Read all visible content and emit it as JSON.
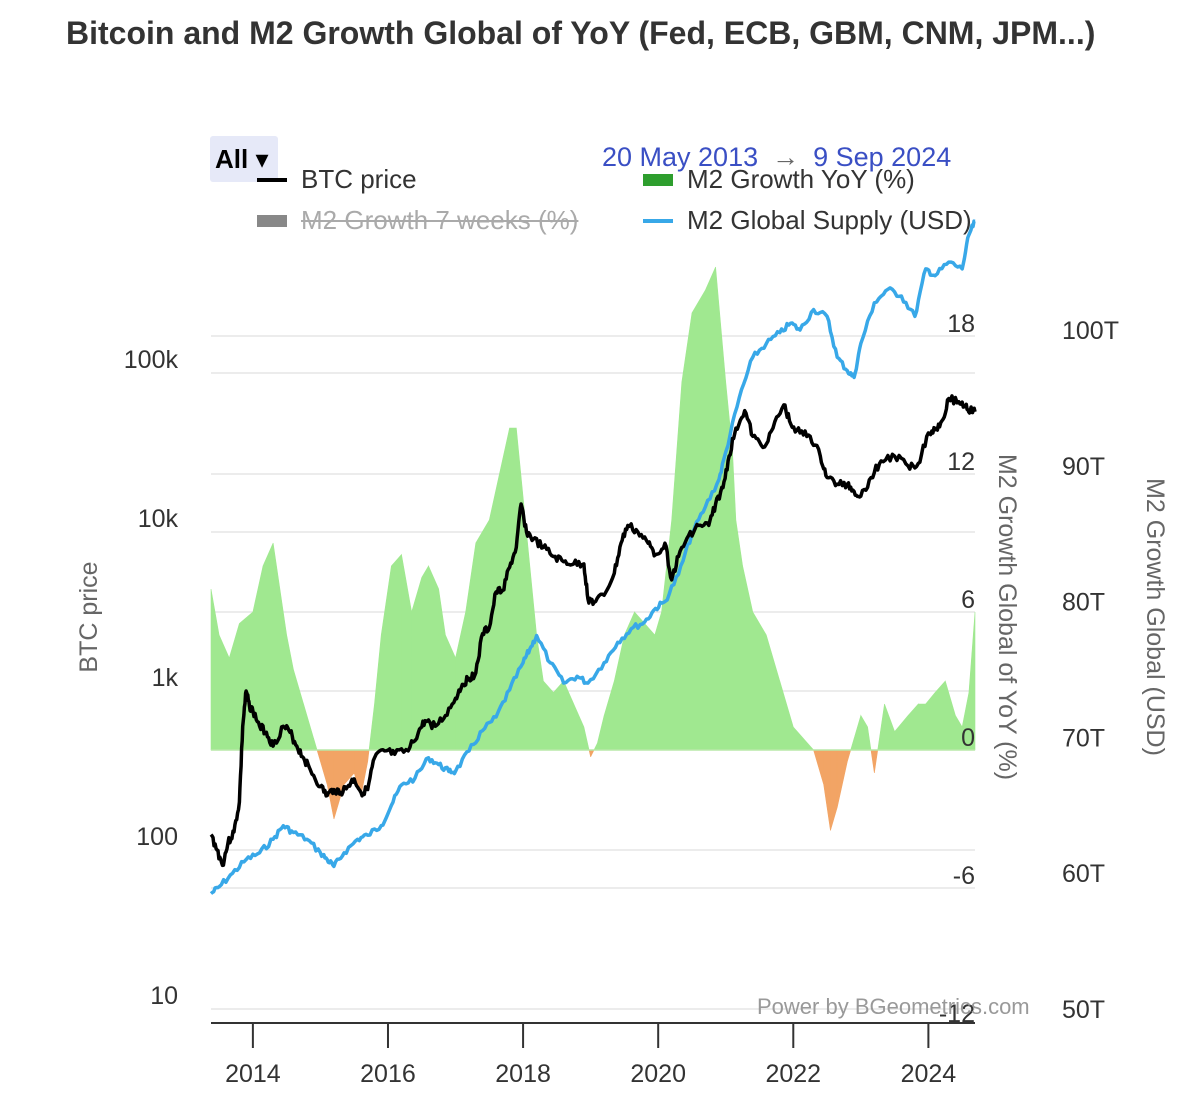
{
  "title": "Bitcoin and M2 Growth Global of YoY (Fed, ECB, GBM, CNM, JPM...)",
  "range_selector": {
    "label": "All ▾"
  },
  "date_range": {
    "from": "20 May 2013",
    "arrow": "→",
    "to": "9 Sep 2024"
  },
  "legend": [
    {
      "label": "BTC price",
      "color": "#000000",
      "symbol": "line",
      "hidden": false
    },
    {
      "label": "M2 Growth YoY (%)",
      "color": "#2e9e2e",
      "symbol": "area",
      "hidden": false
    },
    {
      "label": "M2 Growth 7 weeks (%)",
      "color": "#888888",
      "symbol": "area",
      "hidden": true
    },
    {
      "label": "M2 Global Supply (USD)",
      "color": "#38a8e8",
      "symbol": "line",
      "hidden": false
    }
  ],
  "credit": "Power by BGeometrics.com",
  "chart_data": {
    "type": "line",
    "x_range": [
      2013.38,
      2024.69
    ],
    "x_ticks": [
      "2014",
      "2016",
      "2018",
      "2020",
      "2022",
      "2024"
    ],
    "axes": {
      "btc": {
        "title": "BTC price",
        "scale": "log",
        "range": [
          10,
          400000
        ],
        "ticks": [
          "10",
          "100",
          "1k",
          "10k",
          "100k"
        ]
      },
      "growth": {
        "title": "M2 Growth Global of YoY (%)",
        "range": [
          -12,
          22
        ],
        "ticks": [
          "-12",
          "-6",
          "0",
          "6",
          "12",
          "18"
        ]
      },
      "supply": {
        "title": "M2 Growth Global (USD)",
        "unit": "T",
        "range": [
          50,
          108
        ],
        "ticks": [
          "50T",
          "60T",
          "70T",
          "80T",
          "90T",
          "100T"
        ]
      }
    },
    "series": [
      {
        "name": "BTC price",
        "axis": "btc",
        "color": "#000000",
        "x": [
          2013.38,
          2013.47,
          2013.55,
          2013.63,
          2013.72,
          2013.8,
          2013.85,
          2013.9,
          2013.95,
          2014.0,
          2014.1,
          2014.2,
          2014.3,
          2014.45,
          2014.55,
          2014.65,
          2014.75,
          2014.85,
          2015.0,
          2015.1,
          2015.2,
          2015.3,
          2015.4,
          2015.5,
          2015.6,
          2015.7,
          2015.8,
          2015.95,
          2016.1,
          2016.3,
          2016.45,
          2016.55,
          2016.7,
          2016.85,
          2017.0,
          2017.1,
          2017.2,
          2017.3,
          2017.4,
          2017.5,
          2017.6,
          2017.7,
          2017.8,
          2017.9,
          2017.97,
          2018.05,
          2018.15,
          2018.3,
          2018.45,
          2018.6,
          2018.75,
          2018.9,
          2018.96,
          2019.05,
          2019.2,
          2019.35,
          2019.45,
          2019.55,
          2019.7,
          2019.85,
          2019.96,
          2020.1,
          2020.2,
          2020.3,
          2020.45,
          2020.6,
          2020.75,
          2020.85,
          2020.96,
          2021.05,
          2021.15,
          2021.28,
          2021.4,
          2021.55,
          2021.7,
          2021.86,
          2021.96,
          2022.1,
          2022.25,
          2022.4,
          2022.5,
          2022.65,
          2022.8,
          2022.9,
          2023.0,
          2023.15,
          2023.3,
          2023.5,
          2023.7,
          2023.85,
          2024.0,
          2024.1,
          2024.2,
          2024.3,
          2024.45,
          2024.55,
          2024.62,
          2024.69
        ],
        "y": [
          125,
          100,
          80,
          110,
          130,
          200,
          600,
          1000,
          800,
          750,
          600,
          550,
          450,
          600,
          550,
          450,
          380,
          320,
          250,
          220,
          240,
          230,
          250,
          280,
          230,
          240,
          380,
          420,
          400,
          420,
          550,
          650,
          600,
          700,
          900,
          1100,
          1200,
          1300,
          2300,
          2500,
          4200,
          4300,
          6000,
          8000,
          15000,
          10000,
          9000,
          8000,
          7000,
          6500,
          6300,
          6300,
          3800,
          3600,
          4000,
          5500,
          8500,
          11000,
          10000,
          8500,
          7200,
          8500,
          5000,
          7000,
          9500,
          11000,
          11000,
          15000,
          19000,
          30000,
          45000,
          58000,
          40000,
          34000,
          45000,
          63000,
          48000,
          42000,
          40000,
          30000,
          22000,
          20000,
          20000,
          18000,
          16800,
          22000,
          28000,
          30000,
          26000,
          27000,
          42000,
          44000,
          50000,
          69000,
          66000,
          62000,
          58000,
          57000
        ]
      },
      {
        "name": "M2 Global Supply (USD)",
        "axis": "supply",
        "color": "#38a8e8",
        "x": [
          2013.38,
          2013.5,
          2013.7,
          2013.9,
          2014.1,
          2014.3,
          2014.45,
          2014.6,
          2014.8,
          2015.0,
          2015.1,
          2015.2,
          2015.35,
          2015.55,
          2015.7,
          2015.9,
          2016.05,
          2016.2,
          2016.4,
          2016.6,
          2016.75,
          2016.9,
          2017.0,
          2017.2,
          2017.4,
          2017.6,
          2017.8,
          2018.0,
          2018.1,
          2018.2,
          2018.4,
          2018.6,
          2018.8,
          2018.96,
          2019.2,
          2019.4,
          2019.6,
          2019.8,
          2019.96,
          2020.1,
          2020.3,
          2020.5,
          2020.7,
          2020.9,
          2021.0,
          2021.2,
          2021.4,
          2021.6,
          2021.8,
          2021.96,
          2022.1,
          2022.3,
          2022.5,
          2022.65,
          2022.8,
          2022.9,
          2023.0,
          2023.2,
          2023.4,
          2023.6,
          2023.8,
          2023.96,
          2024.1,
          2024.3,
          2024.5,
          2024.6,
          2024.69
        ],
        "y": [
          58.5,
          59.0,
          60.0,
          61.0,
          61.5,
          62.5,
          63.5,
          63.0,
          62.5,
          61.5,
          61.0,
          60.5,
          61.5,
          62.5,
          62.8,
          63.5,
          65.0,
          66.5,
          67.0,
          68.5,
          68.0,
          67.5,
          67.5,
          69.0,
          70.5,
          71.5,
          73.5,
          75.5,
          76.5,
          77.5,
          75.5,
          74.0,
          74.5,
          74.0,
          75.5,
          77.0,
          78.0,
          78.5,
          79.5,
          80.0,
          82.0,
          85.0,
          87.0,
          89.0,
          91.0,
          95.0,
          98.0,
          99.0,
          99.8,
          100.5,
          100.0,
          101.5,
          101.0,
          98.0,
          97.0,
          96.5,
          99.0,
          102.0,
          103.0,
          102.5,
          101.0,
          104.5,
          104.0,
          105.0,
          104.5,
          107.0,
          108.0
        ]
      },
      {
        "name": "M2 Growth YoY (%)",
        "axis": "growth",
        "color": "#a0e890",
        "negative_color": "#f2a465",
        "x": [
          2013.38,
          2013.5,
          2013.65,
          2013.8,
          2014.0,
          2014.15,
          2014.3,
          2014.4,
          2014.5,
          2014.6,
          2014.75,
          2014.9,
          2015.0,
          2015.1,
          2015.2,
          2015.35,
          2015.5,
          2015.6,
          2015.7,
          2015.8,
          2015.9,
          2016.05,
          2016.2,
          2016.35,
          2016.5,
          2016.6,
          2016.75,
          2016.85,
          2017.0,
          2017.15,
          2017.3,
          2017.5,
          2017.65,
          2017.8,
          2017.9,
          2018.0,
          2018.1,
          2018.2,
          2018.3,
          2018.45,
          2018.6,
          2018.75,
          2018.9,
          2019.0,
          2019.1,
          2019.2,
          2019.35,
          2019.5,
          2019.65,
          2019.8,
          2019.95,
          2020.05,
          2020.2,
          2020.35,
          2020.5,
          2020.7,
          2020.85,
          2021.0,
          2021.1,
          2021.15,
          2021.25,
          2021.4,
          2021.6,
          2021.8,
          2022.0,
          2022.15,
          2022.3,
          2022.45,
          2022.55,
          2022.65,
          2022.8,
          2022.9,
          2023.0,
          2023.1,
          2023.2,
          2023.35,
          2023.5,
          2023.7,
          2023.85,
          2023.96,
          2024.1,
          2024.25,
          2024.4,
          2024.5,
          2024.6,
          2024.69
        ],
        "y": [
          7.0,
          5.0,
          4.0,
          5.5,
          6.0,
          8.0,
          9.0,
          7.0,
          5.0,
          3.5,
          2.0,
          0.5,
          -0.5,
          -1.5,
          -3.0,
          -1.5,
          -1.0,
          -2.0,
          -0.5,
          2.0,
          5.0,
          8.0,
          8.5,
          6.0,
          7.5,
          8.0,
          7.0,
          5.0,
          4.0,
          6.0,
          9.0,
          10.0,
          12.0,
          14.0,
          14.0,
          11.0,
          8.0,
          5.0,
          3.0,
          2.5,
          3.0,
          2.0,
          1.0,
          -0.3,
          0.3,
          1.5,
          3.0,
          5.0,
          6.0,
          5.5,
          5.0,
          6.0,
          10.0,
          16.0,
          19.0,
          20.0,
          21.0,
          16.0,
          13.0,
          10.0,
          8.0,
          6.0,
          5.0,
          3.0,
          1.0,
          0.5,
          0.0,
          -1.5,
          -3.5,
          -2.5,
          -0.5,
          0.5,
          1.5,
          1.0,
          -1.0,
          2.0,
          0.8,
          1.5,
          2.0,
          2.0,
          2.5,
          3.0,
          1.5,
          1.0,
          2.5,
          6.0
        ]
      }
    ]
  }
}
